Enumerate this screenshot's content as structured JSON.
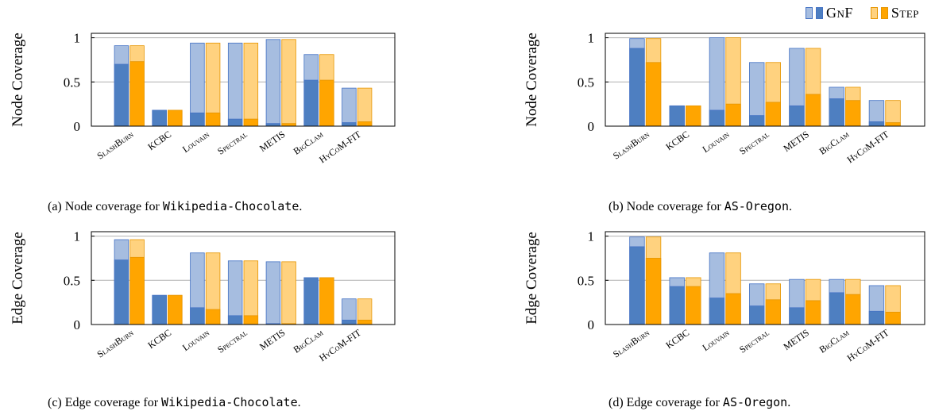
{
  "legend": {
    "items": [
      {
        "name": "GnF",
        "light": "#a6bde0",
        "dark": "#4e7fc1",
        "border": "#4472c4"
      },
      {
        "name": "Step",
        "light": "#ffd27f",
        "dark": "#ffa500",
        "border": "#e69500"
      }
    ]
  },
  "chart_data": [
    {
      "type": "bar",
      "ylabel": "Node Coverage",
      "caption_prefix": "(a) Node coverage for ",
      "caption_dataset": "Wikipedia-Chocolate",
      "caption_suffix": ".",
      "ylim": [
        0,
        1.05
      ],
      "yticks": [
        "0",
        "0.5",
        "1"
      ],
      "categories": [
        "SlashBurn",
        "KCBC",
        "Louvain",
        "Spectral",
        "METIS",
        "BigClam",
        "HyCoM-FIT"
      ],
      "series": [
        {
          "name": "GnF",
          "total": [
            0.91,
            0.18,
            0.94,
            0.94,
            0.98,
            0.81,
            0.43
          ],
          "part": [
            0.7,
            0.18,
            0.15,
            0.08,
            0.03,
            0.52,
            0.04
          ]
        },
        {
          "name": "Step",
          "total": [
            0.91,
            0.18,
            0.94,
            0.94,
            0.98,
            0.81,
            0.43
          ],
          "part": [
            0.73,
            0.18,
            0.15,
            0.08,
            0.03,
            0.52,
            0.05
          ]
        }
      ],
      "grid": true
    },
    {
      "type": "bar",
      "ylabel": "Node Coverage",
      "caption_prefix": "(b) Node coverage for ",
      "caption_dataset": "AS-Oregon",
      "caption_suffix": ".",
      "ylim": [
        0,
        1.05
      ],
      "yticks": [
        "0",
        "0.5",
        "1"
      ],
      "categories": [
        "SlashBurn",
        "KCBC",
        "Louvain",
        "Spectral",
        "METIS",
        "BigClam",
        "HyCoM-FIT"
      ],
      "series": [
        {
          "name": "GnF",
          "total": [
            0.99,
            0.23,
            1.0,
            0.72,
            0.88,
            0.44,
            0.29
          ],
          "part": [
            0.88,
            0.23,
            0.18,
            0.12,
            0.23,
            0.31,
            0.05
          ]
        },
        {
          "name": "Step",
          "total": [
            0.99,
            0.23,
            1.0,
            0.72,
            0.88,
            0.44,
            0.29
          ],
          "part": [
            0.72,
            0.23,
            0.25,
            0.27,
            0.36,
            0.29,
            0.04
          ]
        }
      ],
      "grid": true
    },
    {
      "type": "bar",
      "ylabel": "Edge Coverage",
      "caption_prefix": "(c) Edge coverage for ",
      "caption_dataset": "Wikipedia-Chocolate",
      "caption_suffix": ".",
      "ylim": [
        0,
        1.05
      ],
      "yticks": [
        "0",
        "0.5",
        "1"
      ],
      "categories": [
        "SlashBurn",
        "KCBC",
        "Louvain",
        "Spectral",
        "METIS",
        "BigClam",
        "HyCoM-FIT"
      ],
      "series": [
        {
          "name": "GnF",
          "total": [
            0.96,
            0.33,
            0.81,
            0.72,
            0.71,
            0.53,
            0.29
          ],
          "part": [
            0.73,
            0.33,
            0.19,
            0.1,
            0.01,
            0.53,
            0.05
          ]
        },
        {
          "name": "Step",
          "total": [
            0.96,
            0.33,
            0.81,
            0.72,
            0.71,
            0.53,
            0.29
          ],
          "part": [
            0.76,
            0.33,
            0.17,
            0.1,
            0.01,
            0.53,
            0.05
          ]
        }
      ],
      "grid": true
    },
    {
      "type": "bar",
      "ylabel": "Edge Coverage",
      "caption_prefix": "(d) Edge coverage for ",
      "caption_dataset": "AS-Oregon",
      "caption_suffix": ".",
      "ylim": [
        0,
        1.05
      ],
      "yticks": [
        "0",
        "0.5",
        "1"
      ],
      "categories": [
        "SlashBurn",
        "KCBC",
        "Louvain",
        "Spectral",
        "METIS",
        "BigClam",
        "HyCoM-FIT"
      ],
      "series": [
        {
          "name": "GnF",
          "total": [
            0.99,
            0.53,
            0.81,
            0.46,
            0.51,
            0.51,
            0.44
          ],
          "part": [
            0.88,
            0.43,
            0.3,
            0.21,
            0.19,
            0.36,
            0.15
          ]
        },
        {
          "name": "Step",
          "total": [
            0.99,
            0.53,
            0.81,
            0.46,
            0.51,
            0.51,
            0.44
          ],
          "part": [
            0.75,
            0.43,
            0.35,
            0.28,
            0.27,
            0.34,
            0.14
          ]
        }
      ],
      "grid": true
    }
  ]
}
